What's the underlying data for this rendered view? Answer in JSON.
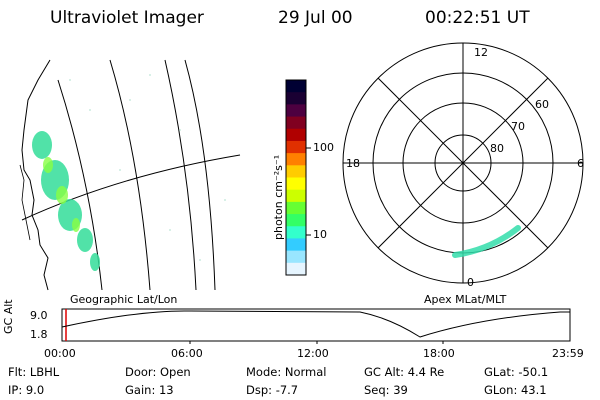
{
  "header": {
    "title": "Ultraviolet Imager",
    "date": "29 Jul 00",
    "time": "00:22:51 UT"
  },
  "colorbar": {
    "label": "photon cm⁻²s⁻¹",
    "ticks": [
      "100",
      "10"
    ],
    "colors": [
      "#000033",
      "#1a0033",
      "#4d0040",
      "#800020",
      "#b00000",
      "#e03000",
      "#ff8000",
      "#ffcc00",
      "#ffff00",
      "#ccff00",
      "#66ff33",
      "#33ff66",
      "#33ffcc",
      "#33ccff",
      "#99e6ff",
      "#e6f5ff"
    ]
  },
  "polar": {
    "mlt_labels": {
      "top": "12",
      "left": "18",
      "right": "6",
      "bottom": "0"
    },
    "lat_labels": [
      "60",
      "70",
      "80"
    ]
  },
  "panel_labels": {
    "geographic": "Geographic Lat/Lon",
    "apex": "Apex MLat/MLT"
  },
  "altitude_plot": {
    "ylabel": "GC Alt",
    "yticks": [
      "9.0",
      "1.8"
    ],
    "xticks": [
      "00:00",
      "06:00",
      "12:00",
      "18:00",
      "23:59"
    ]
  },
  "info": {
    "row1": [
      {
        "key": "Flt:",
        "val": "LBHL"
      },
      {
        "key": "Door:",
        "val": "Open"
      },
      {
        "key": "Mode:",
        "val": "Normal"
      },
      {
        "key": "GC Alt:",
        "val": "4.4 Re"
      },
      {
        "key": "GLat:",
        "val": "-50.1"
      }
    ],
    "row2": [
      {
        "key": "IP:",
        "val": "9.0"
      },
      {
        "key": "Gain:",
        "val": "13"
      },
      {
        "key": "Dsp:",
        "val": "-7.7"
      },
      {
        "key": "Seq:",
        "val": "39"
      },
      {
        "key": "GLon:",
        "val": "43.1"
      }
    ]
  }
}
